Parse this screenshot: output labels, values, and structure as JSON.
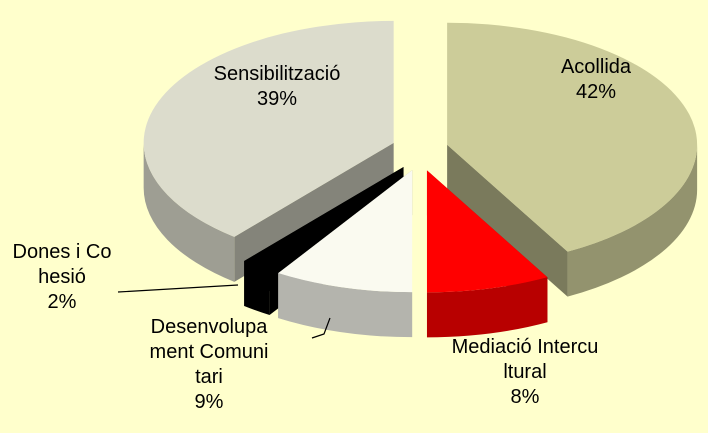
{
  "chart_data": {
    "type": "pie",
    "categories": [
      "Acollida",
      "Mediació Intercultural",
      "Desenvolupament Comunitari",
      "Dones i Cohesió",
      "Sensibilització"
    ],
    "values": [
      42,
      8,
      9,
      2,
      39
    ],
    "value_labels": [
      "42%",
      "8%",
      "9%",
      "2%",
      "39%"
    ],
    "colors": [
      "#cccc99",
      "#ff0000",
      "#fafaf0",
      "#000000",
      "#dcdccc"
    ]
  }
}
